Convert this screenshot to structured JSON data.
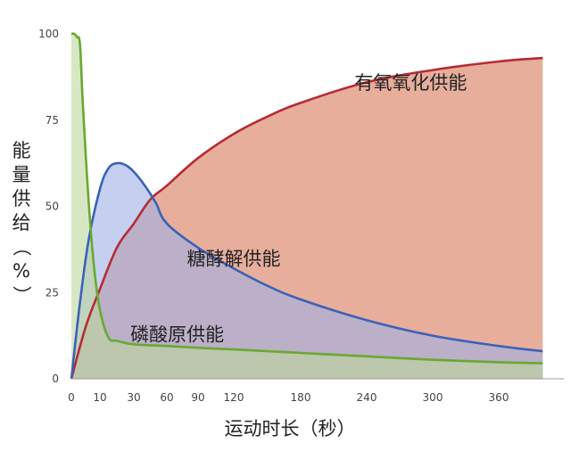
{
  "chart_data": {
    "type": "area",
    "title": "",
    "xlabel": "运动时长（秒）",
    "ylabel": "能量供给（%）",
    "ylim": [
      0,
      100
    ],
    "xlim": [
      0,
      400
    ],
    "grid": false,
    "legend": "none",
    "x_ticks": [
      0,
      10,
      30,
      60,
      90,
      120,
      180,
      240,
      300,
      360
    ],
    "y_ticks": [
      0,
      25,
      50,
      75,
      100
    ],
    "series": [
      {
        "name": "有氧氧化供能",
        "color": "#b72a35",
        "fill": "#e3a08b",
        "x": [
          0,
          5,
          10,
          20,
          30,
          45,
          60,
          90,
          120,
          150,
          180,
          240,
          300,
          360,
          400
        ],
        "values": [
          0,
          15,
          26,
          38,
          45,
          52,
          56,
          64,
          71,
          76,
          80,
          86,
          89.5,
          92,
          93
        ]
      },
      {
        "name": "糖酵解供能",
        "color": "#3a62b8",
        "fill": "#9fb0e6",
        "x": [
          0,
          3,
          6,
          10,
          15,
          20,
          25,
          30,
          40,
          50,
          60,
          90,
          120,
          150,
          180,
          240,
          300,
          360,
          400
        ],
        "values": [
          0,
          22,
          40,
          55,
          61,
          62.5,
          62,
          60,
          56,
          51,
          45,
          38,
          32,
          27,
          23,
          17,
          12.5,
          9.5,
          8
        ]
      },
      {
        "name": "磷酸原供能",
        "color": "#6aa832",
        "fill": "#bcd79b",
        "x": [
          0,
          1,
          2,
          3,
          4,
          6,
          8,
          10,
          15,
          20,
          30,
          60,
          90,
          120,
          180,
          240,
          300,
          360,
          400
        ],
        "values": [
          100,
          100,
          99,
          97,
          80,
          52,
          32,
          20,
          12,
          11,
          10,
          9.5,
          9,
          8.5,
          7.5,
          6.5,
          5.5,
          4.8,
          4.5
        ]
      }
    ],
    "annotations": [
      {
        "text": "有氧氧化供能",
        "x": 280,
        "y": 84
      },
      {
        "text": "糖酵解供能",
        "x": 120,
        "y": 33
      },
      {
        "text": "磷酸原供能",
        "x": 70,
        "y": 11
      }
    ]
  }
}
